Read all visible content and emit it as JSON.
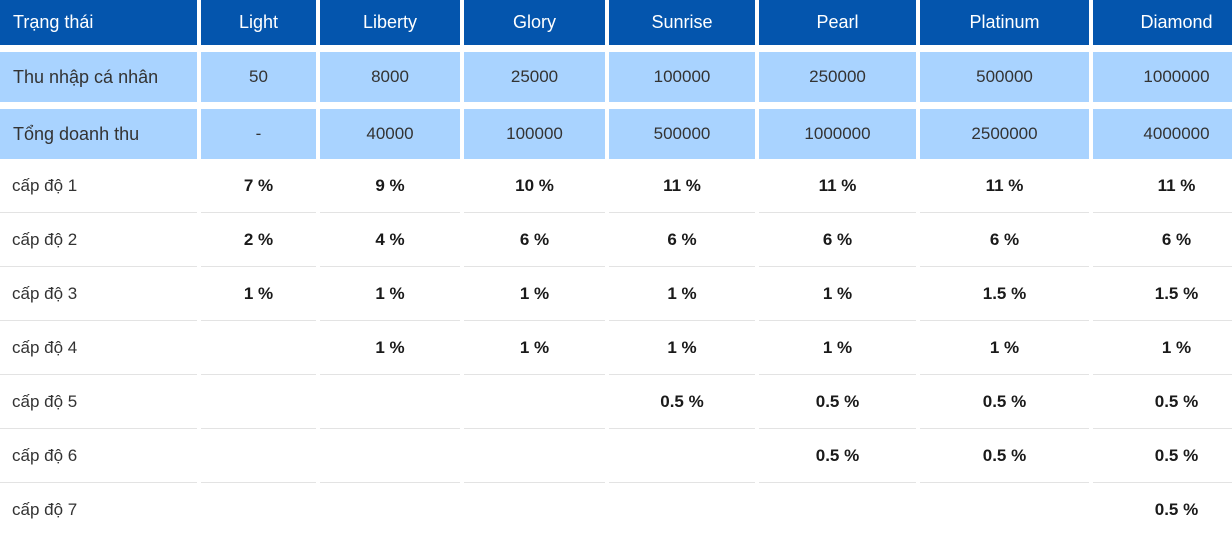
{
  "table": {
    "header": [
      "Trạng thái",
      "Light",
      "Liberty",
      "Glory",
      "Sunrise",
      "Pearl",
      "Platinum",
      "Diamond"
    ],
    "personal_income": {
      "label": "Thu nhập cá nhân",
      "values": [
        "50",
        "8000",
        "25000",
        "100000",
        "250000",
        "500000",
        "1000000"
      ]
    },
    "total_revenue": {
      "label": "Tổng doanh thu",
      "values": [
        "-",
        "40000",
        "100000",
        "500000",
        "1000000",
        "2500000",
        "4000000"
      ]
    },
    "levels": [
      {
        "label": "cấp độ 1",
        "values": [
          "7 %",
          "9 %",
          "10 %",
          "11 %",
          "11 %",
          "11 %",
          "11 %"
        ]
      },
      {
        "label": "cấp độ 2",
        "values": [
          "2 %",
          "4 %",
          "6 %",
          "6 %",
          "6 %",
          "6 %",
          "6 %"
        ]
      },
      {
        "label": "cấp độ 3",
        "values": [
          "1 %",
          "1 %",
          "1 %",
          "1 %",
          "1 %",
          "1.5 %",
          "1.5 %"
        ]
      },
      {
        "label": "cấp độ 4",
        "values": [
          "",
          "1 %",
          "1 %",
          "1 %",
          "1 %",
          "1 %",
          "1 %"
        ]
      },
      {
        "label": "cấp độ 5",
        "values": [
          "",
          "",
          "",
          "0.5 %",
          "0.5 %",
          "0.5 %",
          "0.5 %"
        ]
      },
      {
        "label": "cấp độ 6",
        "values": [
          "",
          "",
          "",
          "",
          "0.5 %",
          "0.5 %",
          "0.5 %"
        ]
      },
      {
        "label": "cấp độ 7",
        "values": [
          "",
          "",
          "",
          "",
          "",
          "",
          "0.5 %"
        ]
      }
    ]
  },
  "colors": {
    "header_bg": "#0455ad",
    "header_text": "#ffffff",
    "income_row_bg": "#a9d3ff",
    "row_divider": "#e3e3e3"
  }
}
